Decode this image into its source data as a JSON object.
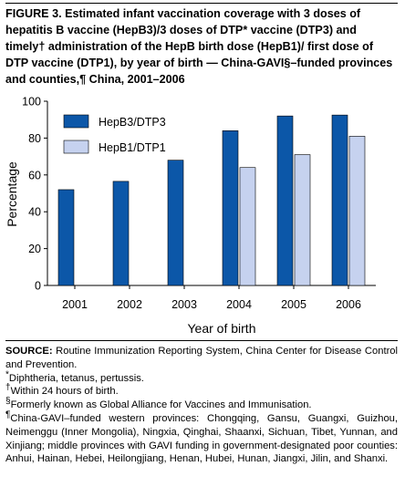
{
  "figure": {
    "title": "FIGURE 3. Estimated infant vaccination coverage with 3 doses of hepatitis B vaccine (HepB3)/3 doses of DTP* vaccine (DTP3) and timely† administration of the HepB birth dose (HepB1)/ first dose of DTP vaccine (DTP1), by year of birth — China-GAVI§–funded provinces and counties,¶ China, 2001–2006"
  },
  "footnotes": {
    "source_label": "SOURCE:",
    "source_text": " Routine Immunization Reporting System, China Center for Disease Control and Prevention.",
    "star_mark": "*",
    "star_text": "Diphtheria, tetanus, pertussis.",
    "dagger_mark": "†",
    "dagger_text": "Within 24 hours of birth.",
    "section_mark": "§",
    "section_text": "Formerly known as Global Alliance for Vaccines and Immunisation.",
    "pilcrow_mark": "¶",
    "pilcrow_text": "China-GAVI–funded western provinces: Chongqing, Gansu, Guangxi, Guizhou, Neimenggu (Inner Mongolia), Ningxia, Qinghai, Shaanxi, Sichuan, Tibet, Yunnan, and Xinjiang; middle provinces with GAVI funding in government-designated poor counties: Anhui, Hainan, Hebei, Heilongjiang, Henan, Hubei, Hunan, Jiangxi, Jilin, and Shanxi."
  },
  "chart_data": {
    "type": "bar",
    "xlabel": "Year of birth",
    "ylabel": "Percentage",
    "ylim": [
      0,
      100
    ],
    "yticks": [
      "0",
      "20",
      "40",
      "60",
      "80",
      "100"
    ],
    "categories": [
      "2001",
      "2002",
      "2003",
      "2004",
      "2005",
      "2006"
    ],
    "legend_position": "top-left",
    "grid": false,
    "series": [
      {
        "name": "HepB3/DTP3",
        "color": "#0c57a8",
        "values": [
          52,
          56.5,
          68,
          84,
          92,
          92.5
        ]
      },
      {
        "name": "HepB1/DTP1",
        "color": "#c6d2ef",
        "values": [
          null,
          null,
          null,
          64,
          71,
          81
        ]
      }
    ]
  }
}
